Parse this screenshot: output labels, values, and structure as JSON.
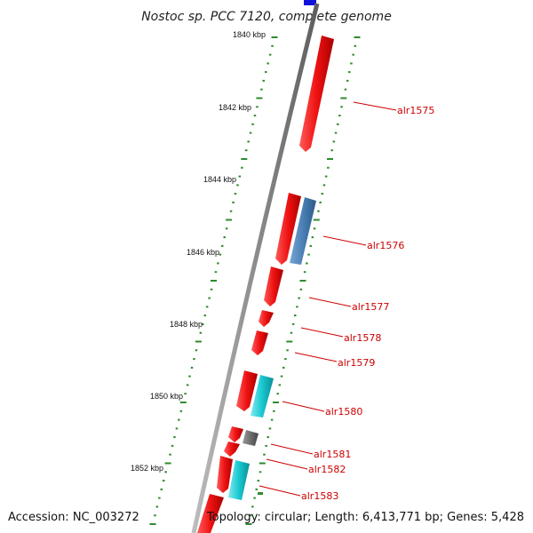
{
  "title": "Nostoc sp. PCC 7120, complete genome",
  "footer": {
    "accession": "Accession: NC_003272",
    "summary": "Topology: circular; Length: 6,413,771 bp; Genes: 5,428"
  },
  "scale": {
    "unit": "kbp",
    "labels": [
      "1840 kbp",
      "1842 kbp",
      "1844 kbp",
      "1846 kbp",
      "1848 kbp",
      "1850 kbp",
      "1852 kbp"
    ]
  },
  "colors": {
    "axis": "#8c8c8c",
    "tick": "#2e8b2e",
    "gene_red": "#ee1111",
    "gene_blue": "#4a7fb5",
    "gene_cyan": "#18c8d0",
    "gene_gray": "#6e6e6e",
    "label": "#cc0000"
  },
  "genes": [
    {
      "label": "alr1575",
      "color": "red"
    },
    {
      "label": "alr1576",
      "color": "red"
    },
    {
      "label": "alr1577",
      "color": "red"
    },
    {
      "label": "alr1578",
      "color": "red"
    },
    {
      "label": "alr1579",
      "color": "red"
    },
    {
      "label": "alr1580",
      "color": "red"
    },
    {
      "label": "alr1581",
      "color": "red"
    },
    {
      "label": "alr1582",
      "color": "red"
    },
    {
      "label": "alr1583",
      "color": "cyan"
    }
  ]
}
